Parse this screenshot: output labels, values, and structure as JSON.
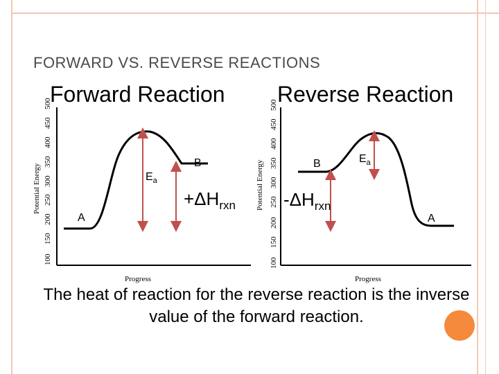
{
  "slide": {
    "title": "FORWARD VS. REVERSE REACTIONS",
    "caption": "The heat of reaction for the reverse reaction is the inverse value of the forward reaction."
  },
  "colors": {
    "accent_orange": "#f58a3c",
    "frame_line": "#f2c7b3",
    "arrow": "#c0504d"
  },
  "forward": {
    "title": "Forward Reaction",
    "ylabel": "Potential Energy",
    "xlabel": "Progress",
    "yticks": [
      "100",
      "150",
      "200",
      "250",
      "300",
      "350",
      "400",
      "450",
      "500"
    ],
    "label_a": "A",
    "label_b": "B",
    "label_ea": "E",
    "label_ea_sub": "a",
    "delta_h": "+ΔH",
    "delta_h_sub": "rxn"
  },
  "reverse": {
    "title": "Reverse Reaction",
    "ylabel": "Potential Energy",
    "xlabel": "Progress",
    "yticks": [
      "100",
      "150",
      "200",
      "250",
      "300",
      "350",
      "400",
      "450",
      "500"
    ],
    "label_a": "A",
    "label_b": "B",
    "label_ea": "E",
    "label_ea_sub": "a",
    "delta_h": "-ΔH",
    "delta_h_sub": "rxn"
  }
}
